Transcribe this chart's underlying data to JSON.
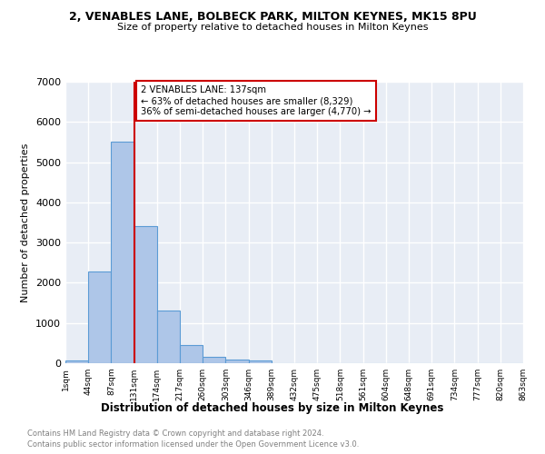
{
  "title_line1": "2, VENABLES LANE, BOLBECK PARK, MILTON KEYNES, MK15 8PU",
  "title_line2": "Size of property relative to detached houses in Milton Keynes",
  "xlabel": "Distribution of detached houses by size in Milton Keynes",
  "ylabel": "Number of detached properties",
  "footer_line1": "Contains HM Land Registry data © Crown copyright and database right 2024.",
  "footer_line2": "Contains public sector information licensed under the Open Government Licence v3.0.",
  "bar_values": [
    75,
    2275,
    5500,
    3420,
    1300,
    460,
    155,
    80,
    70,
    0,
    0,
    0,
    0,
    0,
    0,
    0,
    0,
    0,
    0,
    0
  ],
  "bin_labels": [
    "1sqm",
    "44sqm",
    "87sqm",
    "131sqm",
    "174sqm",
    "217sqm",
    "260sqm",
    "303sqm",
    "346sqm",
    "389sqm",
    "432sqm",
    "475sqm",
    "518sqm",
    "561sqm",
    "604sqm",
    "648sqm",
    "691sqm",
    "734sqm",
    "777sqm",
    "820sqm",
    "863sqm"
  ],
  "bar_color": "#aec6e8",
  "bar_edge_color": "#5b9bd5",
  "bg_color": "#e8edf5",
  "grid_color": "#ffffff",
  "vline_x": 3,
  "vline_color": "#cc0000",
  "annotation_text": "2 VENABLES LANE: 137sqm\n← 63% of detached houses are smaller (8,329)\n36% of semi-detached houses are larger (4,770) →",
  "annotation_box_color": "#ffffff",
  "annotation_box_edge": "#cc0000",
  "ylim": [
    0,
    7000
  ],
  "yticks": [
    0,
    1000,
    2000,
    3000,
    4000,
    5000,
    6000,
    7000
  ]
}
